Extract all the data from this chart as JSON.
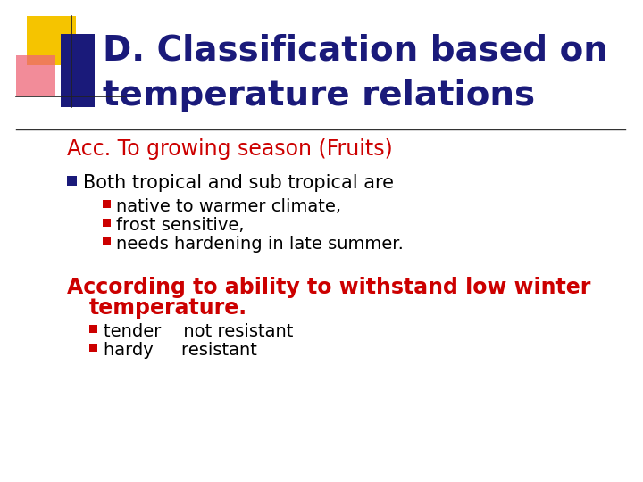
{
  "title_line1": "D. Classification based on",
  "title_line2": "temperature relations",
  "title_color": "#1a1a7a",
  "title_fontsize": 28,
  "bg_color": "#ffffff",
  "divider_color": "#333333",
  "section1_label": "Acc. To growing season (Fruits)",
  "section1_color": "#cc0000",
  "section1_fontsize": 17,
  "bullet1_text": "Both tropical and sub tropical are",
  "bullet1_color": "#000000",
  "bullet1_fontsize": 15,
  "subbullets": [
    "native to warmer climate,",
    "frost sensitive,",
    "needs hardening in late summer."
  ],
  "subbullet_color": "#000000",
  "subbullet_fontsize": 14,
  "section2_line1": "According to ability to withstand low winter",
  "section2_line2": "temperature.",
  "section2_color": "#cc0000",
  "section2_fontsize": 17,
  "bullets2": [
    "tender    not resistant",
    "hardy     resistant"
  ],
  "bullets2_color": "#000000",
  "bullets2_fontsize": 14,
  "logo_yellow": "#f5c400",
  "logo_blue": "#1a1a7a",
  "logo_red": "#cc0000",
  "logo_pink": "#ee6677"
}
